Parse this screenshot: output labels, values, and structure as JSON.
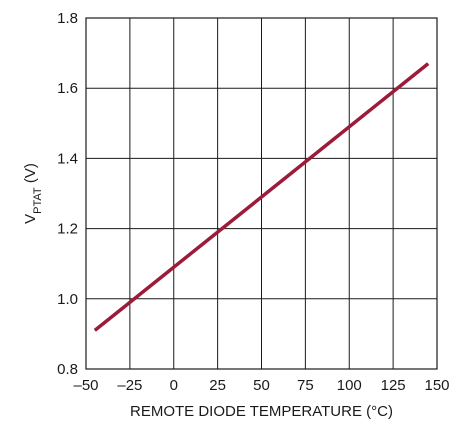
{
  "chart_data": {
    "type": "line",
    "title": "",
    "xlabel": "REMOTE DIODE TEMPERATURE (°C)",
    "ylabel_main": "V",
    "ylabel_sub": "PTAT",
    "ylabel_unit": " (V)",
    "xlim": [
      -50,
      150
    ],
    "ylim": [
      0.8,
      1.8
    ],
    "x_ticks": [
      -50,
      -25,
      0,
      25,
      50,
      75,
      100,
      125,
      150
    ],
    "x_tick_labels": [
      "–50",
      "–25",
      "0",
      "25",
      "50",
      "75",
      "100",
      "125",
      "150"
    ],
    "y_ticks": [
      0.8,
      1.0,
      1.2,
      1.4,
      1.6,
      1.8
    ],
    "y_tick_labels": [
      "0.8",
      "1.0",
      "1.2",
      "1.4",
      "1.6",
      "1.8"
    ],
    "grid": true,
    "series": [
      {
        "color": "#9c1b3b",
        "x": [
          -45,
          145
        ],
        "y": [
          0.91,
          1.67
        ]
      }
    ]
  }
}
